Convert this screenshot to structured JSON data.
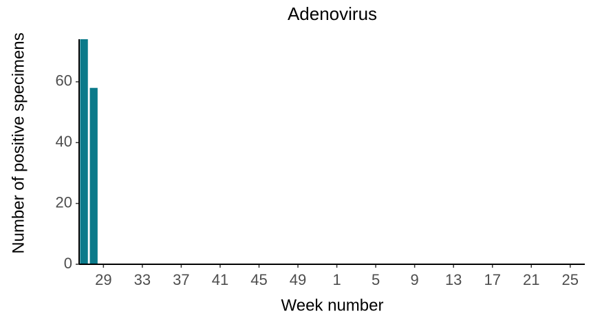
{
  "chart_data": {
    "type": "bar",
    "title": "Adenovirus",
    "x_label": "Week number",
    "y_label": "Number of positive specimens",
    "categories": [
      null,
      null,
      "29",
      null,
      null,
      null,
      "33",
      null,
      null,
      null,
      "37",
      null,
      null,
      null,
      "41",
      null,
      null,
      null,
      "45",
      null,
      null,
      null,
      "49",
      null,
      null,
      null,
      "1",
      null,
      null,
      null,
      "5",
      null,
      null,
      null,
      "9",
      null,
      null,
      null,
      "13",
      null,
      null,
      null,
      "17",
      null,
      null,
      null,
      "21",
      null,
      null,
      null,
      "25",
      null
    ],
    "values": [
      74,
      58,
      0,
      0,
      0,
      0,
      0,
      0,
      0,
      0,
      0,
      0,
      0,
      0,
      0,
      0,
      0,
      0,
      0,
      0,
      0,
      0,
      0,
      0,
      0,
      0,
      0,
      0,
      0,
      0,
      0,
      0,
      0,
      0,
      0,
      0,
      0,
      0,
      0,
      0,
      0,
      0,
      0,
      0,
      0,
      0,
      0,
      0,
      0,
      0,
      0,
      0
    ],
    "color": "#0b7a8a",
    "ylim": [
      0,
      74
    ],
    "yticks": [
      0,
      20,
      40,
      60
    ],
    "grid": false
  }
}
